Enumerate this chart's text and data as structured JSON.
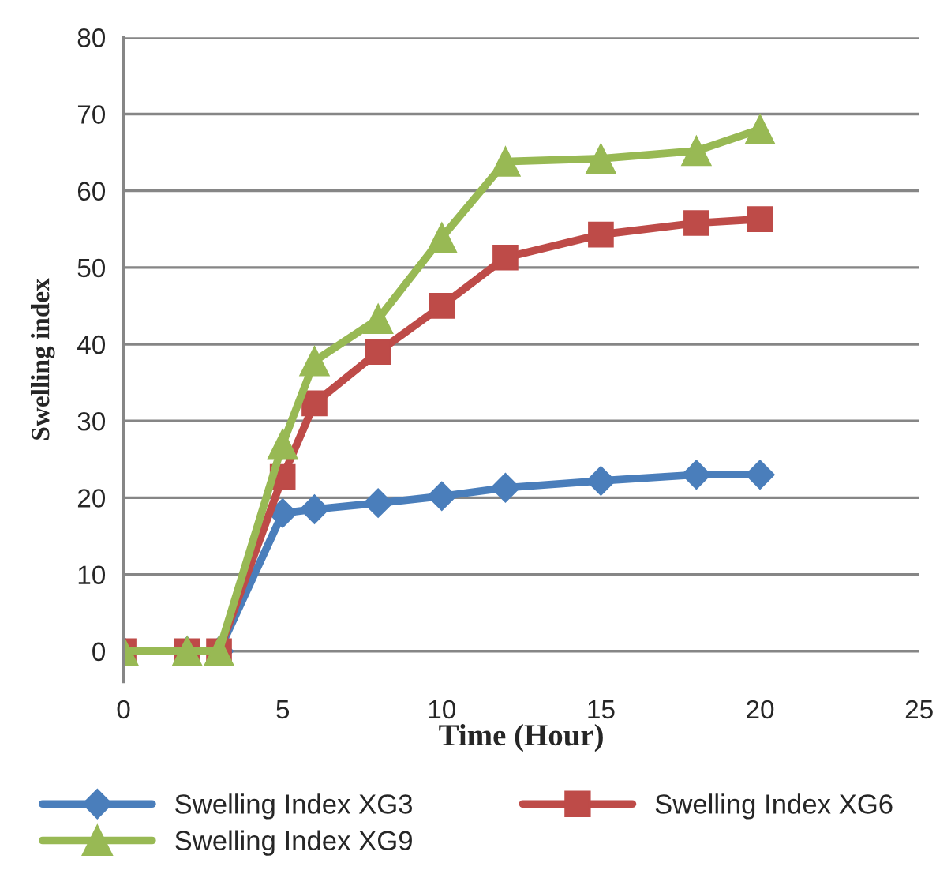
{
  "chart_data": {
    "type": "line",
    "xlabel": "Time (Hour)",
    "ylabel": "Swelling index",
    "x": [
      0,
      2,
      3,
      5,
      6,
      8,
      10,
      12,
      15,
      18,
      20
    ],
    "series": [
      {
        "name": "Swelling Index XG3",
        "color": "#4a7ebb",
        "marker": "diamond",
        "values": [
          0,
          0,
          0,
          18,
          18.5,
          19.3,
          20.2,
          21.3,
          22.2,
          23,
          23
        ]
      },
      {
        "name": "Swelling Index XG6",
        "color": "#be4b48",
        "marker": "square",
        "values": [
          0,
          0,
          0,
          22.7,
          32.3,
          39,
          45,
          51.3,
          54.3,
          55.8,
          56.3
        ]
      },
      {
        "name": "Swelling Index XG9",
        "color": "#98b954",
        "marker": "triangle",
        "values": [
          0,
          0,
          0,
          27,
          37.8,
          43.3,
          53.9,
          63.8,
          64.2,
          65.2,
          68
        ]
      }
    ],
    "xlim": [
      0,
      25
    ],
    "xticks": [
      0,
      5,
      10,
      15,
      20,
      25
    ],
    "ylim": [
      -4,
      80
    ],
    "yticks": [
      0,
      10,
      20,
      30,
      40,
      50,
      60,
      70,
      80
    ],
    "grid": "y",
    "legend": "bottom",
    "line_style": "solid"
  }
}
